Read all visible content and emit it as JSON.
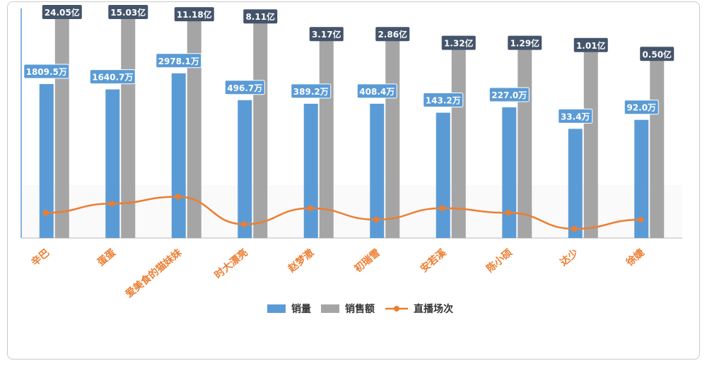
{
  "chart_data": {
    "type": "bar",
    "title": "",
    "xlabel": "",
    "ylabel": "",
    "categories": [
      "辛巴",
      "蛋蛋",
      "爱美食的猫妹妹",
      "时大漂亮",
      "赵梦澈",
      "初瑞雪",
      "安若溪",
      "陈小硕",
      "达少",
      "徐婕"
    ],
    "series": [
      {
        "name": "销量",
        "kind": "bar",
        "color": "#5b9bd5",
        "labels": [
          "1809.5万",
          "1640.7万",
          "2978.1万",
          "496.7万",
          "389.2万",
          "408.4万",
          "143.2万",
          "227.0万",
          "33.4万",
          "92.0万"
        ],
        "values": [
          1809.5,
          1640.7,
          2978.1,
          496.7,
          389.2,
          408.4,
          143.2,
          227.0,
          33.4,
          92.0
        ],
        "display_level": [
          0.86,
          0.83,
          0.92,
          0.77,
          0.75,
          0.75,
          0.7,
          0.73,
          0.61,
          0.66
        ]
      },
      {
        "name": "销售额",
        "kind": "bar",
        "color": "#a5a5a5",
        "labels": [
          "24.05亿",
          "15.03亿",
          "11.18亿",
          "8.11亿",
          "3.17亿",
          "2.86亿",
          "1.32亿",
          "1.29亿",
          "1.01亿",
          "0.50亿"
        ],
        "values": [
          24.05,
          15.03,
          11.18,
          8.11,
          3.17,
          2.86,
          1.32,
          1.29,
          1.01,
          0.5
        ],
        "display_level": [
          1.0,
          1.0,
          0.99,
          0.98,
          0.9,
          0.9,
          0.86,
          0.86,
          0.85,
          0.81
        ]
      },
      {
        "name": "直播场次",
        "kind": "line",
        "color": "#ed7d31",
        "display_level": [
          0.11,
          0.15,
          0.18,
          0.06,
          0.13,
          0.08,
          0.13,
          0.11,
          0.04,
          0.08
        ]
      }
    ],
    "label_bg": {
      "销量": "#5b9bd5",
      "销售额": "#44546a"
    },
    "category_label_color": "#ed7d31",
    "grid": false,
    "legend": {
      "position": "bottom",
      "items": [
        {
          "label": "销量",
          "color": "#5b9bd5",
          "marker": "rect"
        },
        {
          "label": "销售额",
          "color": "#a5a5a5",
          "marker": "rect"
        },
        {
          "label": "直播场次",
          "color": "#ed7d31",
          "marker": "line-dot"
        }
      ]
    }
  }
}
